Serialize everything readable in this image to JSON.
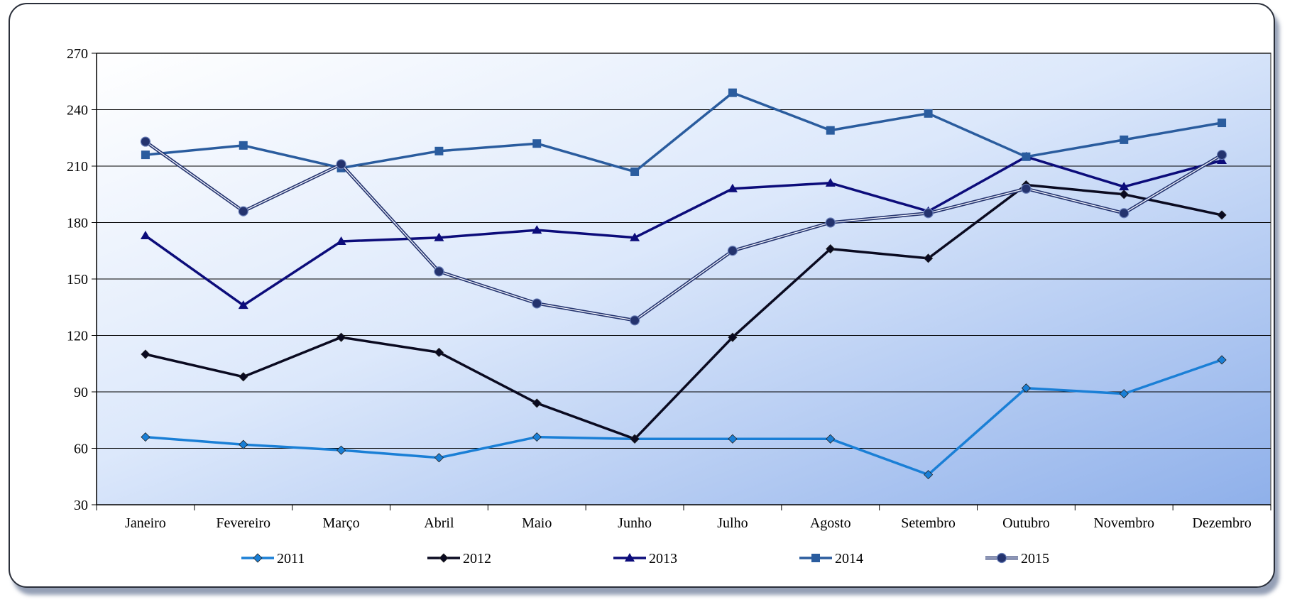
{
  "chart_data": {
    "type": "line",
    "title": "",
    "xlabel": "",
    "ylabel": "",
    "categories": [
      "Janeiro",
      "Fevereiro",
      "Março",
      "Abril",
      "Maio",
      "Junho",
      "Julho",
      "Agosto",
      "Setembro",
      "Outubro",
      "Novembro",
      "Dezembro"
    ],
    "ylim": [
      30,
      270
    ],
    "yticks": [
      "30",
      "60",
      "90",
      "120",
      "150",
      "180",
      "210",
      "240",
      "270"
    ],
    "grid": "horizontal",
    "legend_position": "bottom",
    "series": [
      {
        "name": "2011",
        "marker": "diamond",
        "color": "#1a7fd6",
        "style": "solid",
        "values": [
          66,
          62,
          59,
          55,
          66,
          65,
          65,
          65,
          46,
          92,
          89,
          107
        ]
      },
      {
        "name": "2012",
        "marker": "diamond",
        "color": "#0a0a20",
        "style": "solid",
        "values": [
          110,
          98,
          119,
          111,
          84,
          65,
          119,
          166,
          161,
          200,
          195,
          184
        ]
      },
      {
        "name": "2013",
        "marker": "triangle",
        "color": "#0c0c7a",
        "style": "solid",
        "values": [
          173,
          136,
          170,
          172,
          176,
          172,
          198,
          201,
          186,
          215,
          199,
          213
        ]
      },
      {
        "name": "2014",
        "marker": "square",
        "color": "#2a5c9e",
        "style": "solid",
        "values": [
          216,
          221,
          209,
          218,
          222,
          207,
          249,
          229,
          238,
          215,
          224,
          233
        ]
      },
      {
        "name": "2015",
        "marker": "circle",
        "color": "#24336e",
        "style": "double",
        "values": [
          223,
          186,
          211,
          154,
          137,
          128,
          165,
          180,
          185,
          198,
          185,
          216
        ]
      }
    ]
  }
}
